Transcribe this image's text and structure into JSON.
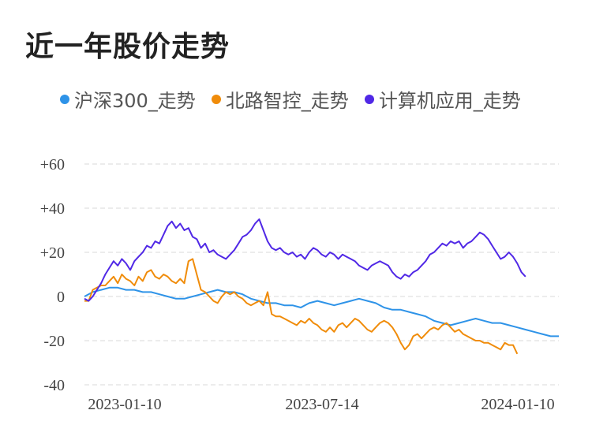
{
  "chart_data": {
    "type": "line",
    "title": "近一年股价走势",
    "xlabel": "",
    "ylabel": "",
    "ylim": [
      -40,
      60
    ],
    "yticks": [
      60,
      40,
      20,
      0,
      -20,
      -40
    ],
    "ytick_labels": [
      "+60",
      "+40",
      "+20",
      "0",
      "-20",
      "-40"
    ],
    "xtick_labels": [
      "2023-01-10",
      "2023-07-14",
      "2024-01-10"
    ],
    "grid": true,
    "legend_position": "top",
    "series": [
      {
        "name": "沪深300_走势",
        "color": "#2e93e8",
        "points": [
          [
            0,
            0
          ],
          [
            4,
            2
          ],
          [
            8,
            3
          ],
          [
            12,
            4
          ],
          [
            16,
            4
          ],
          [
            20,
            3
          ],
          [
            24,
            3
          ],
          [
            28,
            2
          ],
          [
            32,
            2
          ],
          [
            36,
            1
          ],
          [
            40,
            0
          ],
          [
            44,
            -1
          ],
          [
            48,
            -1
          ],
          [
            52,
            0
          ],
          [
            56,
            1
          ],
          [
            60,
            2
          ],
          [
            64,
            3
          ],
          [
            68,
            2
          ],
          [
            72,
            2
          ],
          [
            76,
            1
          ],
          [
            80,
            -1
          ],
          [
            84,
            -2
          ],
          [
            88,
            -3
          ],
          [
            92,
            -3
          ],
          [
            96,
            -4
          ],
          [
            100,
            -4
          ],
          [
            104,
            -5
          ],
          [
            108,
            -3
          ],
          [
            112,
            -2
          ],
          [
            116,
            -3
          ],
          [
            120,
            -4
          ],
          [
            124,
            -3
          ],
          [
            128,
            -2
          ],
          [
            132,
            -1
          ],
          [
            136,
            -2
          ],
          [
            140,
            -3
          ],
          [
            144,
            -5
          ],
          [
            148,
            -6
          ],
          [
            152,
            -6
          ],
          [
            156,
            -7
          ],
          [
            160,
            -8
          ],
          [
            164,
            -9
          ],
          [
            168,
            -11
          ],
          [
            172,
            -12
          ],
          [
            176,
            -13
          ],
          [
            180,
            -12
          ],
          [
            184,
            -11
          ],
          [
            188,
            -10
          ],
          [
            192,
            -11
          ],
          [
            196,
            -12
          ],
          [
            200,
            -12
          ],
          [
            204,
            -13
          ],
          [
            208,
            -14
          ],
          [
            212,
            -15
          ],
          [
            216,
            -16
          ],
          [
            220,
            -17
          ],
          [
            224,
            -18
          ],
          [
            228,
            -18
          ]
        ]
      },
      {
        "name": "北路智控_走势",
        "color": "#f08c0a",
        "points": [
          [
            0,
            -2
          ],
          [
            2,
            -2
          ],
          [
            4,
            3
          ],
          [
            6,
            4
          ],
          [
            8,
            5
          ],
          [
            10,
            5
          ],
          [
            12,
            7
          ],
          [
            14,
            9
          ],
          [
            16,
            6
          ],
          [
            18,
            10
          ],
          [
            20,
            8
          ],
          [
            22,
            7
          ],
          [
            24,
            5
          ],
          [
            26,
            9
          ],
          [
            28,
            7
          ],
          [
            30,
            11
          ],
          [
            32,
            12
          ],
          [
            34,
            9
          ],
          [
            36,
            8
          ],
          [
            38,
            10
          ],
          [
            40,
            9
          ],
          [
            42,
            7
          ],
          [
            44,
            6
          ],
          [
            46,
            8
          ],
          [
            48,
            6
          ],
          [
            50,
            16
          ],
          [
            52,
            17
          ],
          [
            54,
            10
          ],
          [
            56,
            3
          ],
          [
            58,
            2
          ],
          [
            60,
            0
          ],
          [
            62,
            -2
          ],
          [
            64,
            -3
          ],
          [
            66,
            0
          ],
          [
            68,
            2
          ],
          [
            70,
            1
          ],
          [
            72,
            2
          ],
          [
            74,
            0
          ],
          [
            76,
            -1
          ],
          [
            78,
            -3
          ],
          [
            80,
            -4
          ],
          [
            82,
            -3
          ],
          [
            84,
            -2
          ],
          [
            86,
            -4
          ],
          [
            88,
            2
          ],
          [
            90,
            -8
          ],
          [
            92,
            -9
          ],
          [
            94,
            -9
          ],
          [
            96,
            -10
          ],
          [
            98,
            -11
          ],
          [
            100,
            -12
          ],
          [
            102,
            -13
          ],
          [
            104,
            -11
          ],
          [
            106,
            -12
          ],
          [
            108,
            -10
          ],
          [
            110,
            -12
          ],
          [
            112,
            -13
          ],
          [
            114,
            -15
          ],
          [
            116,
            -16
          ],
          [
            118,
            -14
          ],
          [
            120,
            -16
          ],
          [
            122,
            -13
          ],
          [
            124,
            -12
          ],
          [
            126,
            -14
          ],
          [
            128,
            -12
          ],
          [
            130,
            -10
          ],
          [
            132,
            -11
          ],
          [
            134,
            -13
          ],
          [
            136,
            -15
          ],
          [
            138,
            -16
          ],
          [
            140,
            -14
          ],
          [
            142,
            -12
          ],
          [
            144,
            -11
          ],
          [
            146,
            -12
          ],
          [
            148,
            -14
          ],
          [
            150,
            -17
          ],
          [
            152,
            -21
          ],
          [
            154,
            -24
          ],
          [
            156,
            -22
          ],
          [
            158,
            -18
          ],
          [
            160,
            -17
          ],
          [
            162,
            -19
          ],
          [
            164,
            -17
          ],
          [
            166,
            -15
          ],
          [
            168,
            -14
          ],
          [
            170,
            -15
          ],
          [
            172,
            -13
          ],
          [
            174,
            -12
          ],
          [
            176,
            -14
          ],
          [
            178,
            -16
          ],
          [
            180,
            -15
          ],
          [
            182,
            -17
          ],
          [
            184,
            -18
          ],
          [
            186,
            -19
          ],
          [
            188,
            -20
          ],
          [
            190,
            -20
          ],
          [
            192,
            -21
          ],
          [
            194,
            -21
          ],
          [
            196,
            -22
          ],
          [
            198,
            -23
          ],
          [
            200,
            -24
          ],
          [
            202,
            -21
          ],
          [
            204,
            -22
          ],
          [
            206,
            -22
          ],
          [
            208,
            -26
          ]
        ]
      },
      {
        "name": "计算机应用_走势",
        "color": "#5028e6",
        "points": [
          [
            0,
            -1
          ],
          [
            2,
            -2
          ],
          [
            4,
            0
          ],
          [
            6,
            3
          ],
          [
            8,
            6
          ],
          [
            10,
            10
          ],
          [
            12,
            13
          ],
          [
            14,
            16
          ],
          [
            16,
            14
          ],
          [
            18,
            17
          ],
          [
            20,
            15
          ],
          [
            22,
            12
          ],
          [
            24,
            16
          ],
          [
            26,
            18
          ],
          [
            28,
            20
          ],
          [
            30,
            23
          ],
          [
            32,
            22
          ],
          [
            34,
            25
          ],
          [
            36,
            24
          ],
          [
            38,
            28
          ],
          [
            40,
            32
          ],
          [
            42,
            34
          ],
          [
            44,
            31
          ],
          [
            46,
            33
          ],
          [
            48,
            30
          ],
          [
            50,
            31
          ],
          [
            52,
            27
          ],
          [
            54,
            26
          ],
          [
            56,
            22
          ],
          [
            58,
            24
          ],
          [
            60,
            20
          ],
          [
            62,
            21
          ],
          [
            64,
            19
          ],
          [
            66,
            18
          ],
          [
            68,
            17
          ],
          [
            70,
            19
          ],
          [
            72,
            21
          ],
          [
            74,
            24
          ],
          [
            76,
            27
          ],
          [
            78,
            28
          ],
          [
            80,
            30
          ],
          [
            82,
            33
          ],
          [
            84,
            35
          ],
          [
            86,
            30
          ],
          [
            88,
            25
          ],
          [
            90,
            22
          ],
          [
            92,
            21
          ],
          [
            94,
            22
          ],
          [
            96,
            20
          ],
          [
            98,
            19
          ],
          [
            100,
            20
          ],
          [
            102,
            18
          ],
          [
            104,
            19
          ],
          [
            106,
            17
          ],
          [
            108,
            20
          ],
          [
            110,
            22
          ],
          [
            112,
            21
          ],
          [
            114,
            19
          ],
          [
            116,
            18
          ],
          [
            118,
            20
          ],
          [
            120,
            19
          ],
          [
            122,
            17
          ],
          [
            124,
            19
          ],
          [
            126,
            18
          ],
          [
            128,
            17
          ],
          [
            130,
            16
          ],
          [
            132,
            14
          ],
          [
            134,
            13
          ],
          [
            136,
            12
          ],
          [
            138,
            14
          ],
          [
            140,
            15
          ],
          [
            142,
            16
          ],
          [
            144,
            15
          ],
          [
            146,
            14
          ],
          [
            148,
            11
          ],
          [
            150,
            9
          ],
          [
            152,
            8
          ],
          [
            154,
            10
          ],
          [
            156,
            9
          ],
          [
            158,
            11
          ],
          [
            160,
            12
          ],
          [
            162,
            14
          ],
          [
            164,
            16
          ],
          [
            166,
            19
          ],
          [
            168,
            20
          ],
          [
            170,
            22
          ],
          [
            172,
            24
          ],
          [
            174,
            23
          ],
          [
            176,
            25
          ],
          [
            178,
            24
          ],
          [
            180,
            25
          ],
          [
            182,
            22
          ],
          [
            184,
            24
          ],
          [
            186,
            25
          ],
          [
            188,
            27
          ],
          [
            190,
            29
          ],
          [
            192,
            28
          ],
          [
            194,
            26
          ],
          [
            196,
            23
          ],
          [
            198,
            20
          ],
          [
            200,
            17
          ],
          [
            202,
            18
          ],
          [
            204,
            20
          ],
          [
            206,
            18
          ],
          [
            208,
            15
          ],
          [
            210,
            11
          ],
          [
            212,
            9
          ]
        ]
      }
    ]
  }
}
